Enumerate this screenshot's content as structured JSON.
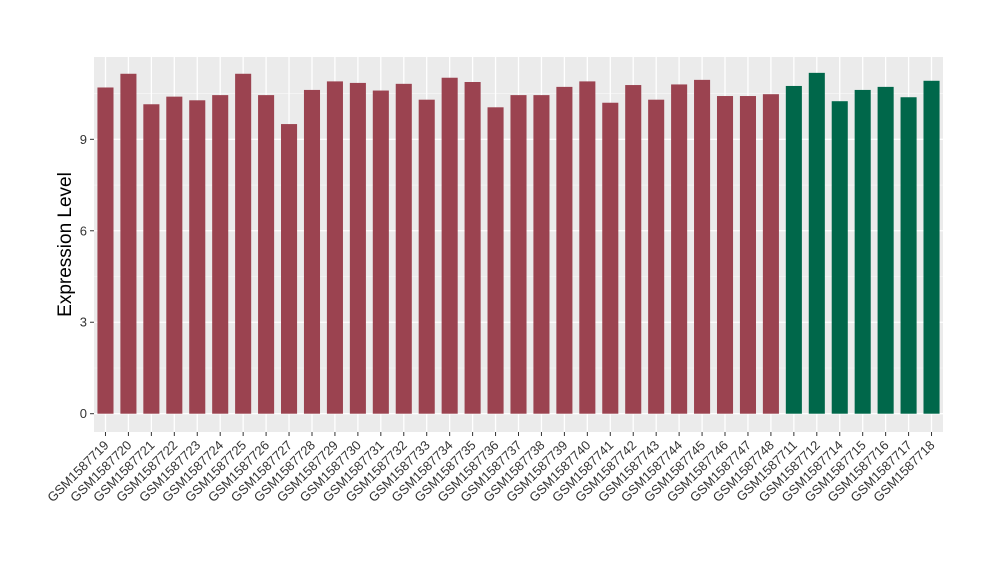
{
  "chart_data": {
    "type": "bar",
    "ylabel": "Expression Level",
    "xlabel": "",
    "ylim": [
      -0.6,
      11.7
    ],
    "yticks": [
      0,
      3,
      6,
      9
    ],
    "grid": true,
    "panel_background": "#ebebeb",
    "categories": [
      "GSM1587719",
      "GSM1587720",
      "GSM1587721",
      "GSM1587722",
      "GSM1587723",
      "GSM1587724",
      "GSM1587725",
      "GSM1587726",
      "GSM1587727",
      "GSM1587728",
      "GSM1587729",
      "GSM1587730",
      "GSM1587731",
      "GSM1587732",
      "GSM1587733",
      "GSM1587734",
      "GSM1587735",
      "GSM1587736",
      "GSM1587737",
      "GSM1587738",
      "GSM1587739",
      "GSM1587740",
      "GSM1587741",
      "GSM1587742",
      "GSM1587743",
      "GSM1587744",
      "GSM1587745",
      "GSM1587746",
      "GSM1587747",
      "GSM1587748",
      "GSM1587711",
      "GSM1587712",
      "GSM1587714",
      "GSM1587715",
      "GSM1587716",
      "GSM1587717",
      "GSM1587718"
    ],
    "values": [
      10.7,
      11.15,
      10.15,
      10.4,
      10.28,
      10.45,
      11.15,
      10.45,
      9.5,
      10.62,
      10.9,
      10.85,
      10.6,
      10.82,
      10.3,
      11.02,
      10.88,
      10.05,
      10.45,
      10.45,
      10.72,
      10.9,
      10.2,
      10.78,
      10.3,
      10.8,
      10.95,
      10.42,
      10.42,
      10.48,
      10.75,
      11.18,
      10.25,
      10.62,
      10.72,
      10.38,
      10.92
    ],
    "groups": [
      0,
      0,
      0,
      0,
      0,
      0,
      0,
      0,
      0,
      0,
      0,
      0,
      0,
      0,
      0,
      0,
      0,
      0,
      0,
      0,
      0,
      0,
      0,
      0,
      0,
      0,
      0,
      0,
      0,
      0,
      1,
      1,
      1,
      1,
      1,
      1,
      1
    ],
    "group_colors": [
      "#9b4350",
      "#00674a"
    ]
  }
}
